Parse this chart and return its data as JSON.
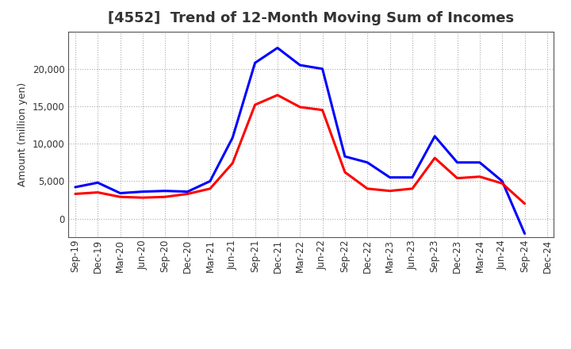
{
  "title": "[4552]  Trend of 12-Month Moving Sum of Incomes",
  "ylabel": "Amount (million yen)",
  "x_labels": [
    "Sep-19",
    "Dec-19",
    "Mar-20",
    "Jun-20",
    "Sep-20",
    "Dec-20",
    "Mar-21",
    "Jun-21",
    "Sep-21",
    "Dec-21",
    "Mar-22",
    "Jun-22",
    "Sep-22",
    "Dec-22",
    "Mar-23",
    "Jun-23",
    "Sep-23",
    "Dec-23",
    "Mar-24",
    "Jun-24",
    "Sep-24",
    "Dec-24"
  ],
  "ordinary_income": [
    4200,
    4800,
    3400,
    3600,
    3700,
    3600,
    5000,
    10800,
    20800,
    22800,
    20500,
    20000,
    8300,
    7500,
    5500,
    5500,
    11000,
    7500,
    7500,
    5000,
    -2000,
    null
  ],
  "net_income": [
    3300,
    3500,
    2900,
    2800,
    2900,
    3300,
    4000,
    7400,
    15200,
    16500,
    14900,
    14500,
    6200,
    4000,
    3700,
    4000,
    8100,
    5400,
    5600,
    4700,
    2000,
    null
  ],
  "ordinary_income_color": "#0000FF",
  "net_income_color": "#FF0000",
  "ylim": [
    -2500,
    25000
  ],
  "yticks": [
    0,
    5000,
    10000,
    15000,
    20000
  ],
  "background_color": "#FFFFFF",
  "grid_color": "#AAAAAA",
  "title_fontsize": 13,
  "legend_fontsize": 10,
  "axis_label_fontsize": 9,
  "tick_fontsize": 8.5,
  "title_color": "#333333",
  "tick_color": "#333333"
}
